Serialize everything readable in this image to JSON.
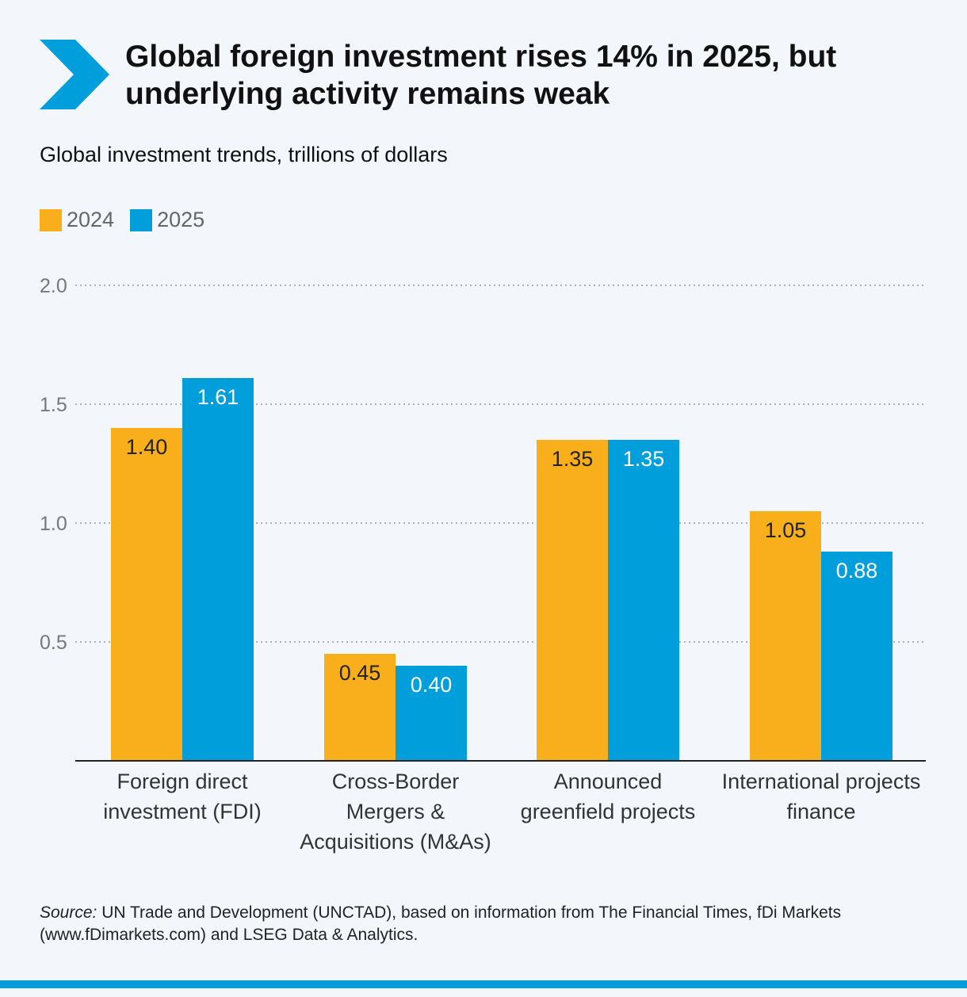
{
  "header": {
    "title": "Global foreign investment rises 14% in 2025, but underlying activity remains weak",
    "subtitle": "Global investment trends, trillions of dollars"
  },
  "colors": {
    "accent": "#009edb",
    "series_2024": "#f9ae1b",
    "series_2025": "#009edb"
  },
  "chart_data": {
    "type": "bar",
    "title": "Global investment trends, trillions of dollars",
    "categories": [
      [
        "Foreign direct",
        "investment (FDI)"
      ],
      [
        "Cross-Border",
        "Mergers &",
        "Acquisitions (M&As)"
      ],
      [
        "Announced",
        "greenfield projects"
      ],
      [
        "International projects",
        "finance"
      ]
    ],
    "series": [
      {
        "name": "2024",
        "values": [
          1.4,
          0.45,
          1.35,
          1.05
        ],
        "labels": [
          "1.40",
          "0.45",
          "1.35",
          "1.05"
        ],
        "color": "#f9ae1b"
      },
      {
        "name": "2025",
        "values": [
          1.61,
          0.4,
          1.35,
          0.88
        ],
        "labels": [
          "1.61",
          "0.40",
          "1.35",
          "0.88"
        ],
        "color": "#009edb"
      }
    ],
    "ylim": [
      0,
      2.0
    ],
    "yticks": [
      "0.5",
      "1.0",
      "1.5",
      "2.0"
    ],
    "grid": true,
    "legend": "top-left"
  },
  "footer": {
    "source_label": "Source:",
    "source_text": " UN Trade and Development (UNCTAD), based on information from The Financial Times, fDi Markets (www.fDimarkets.com) and LSEG Data & Analytics."
  }
}
